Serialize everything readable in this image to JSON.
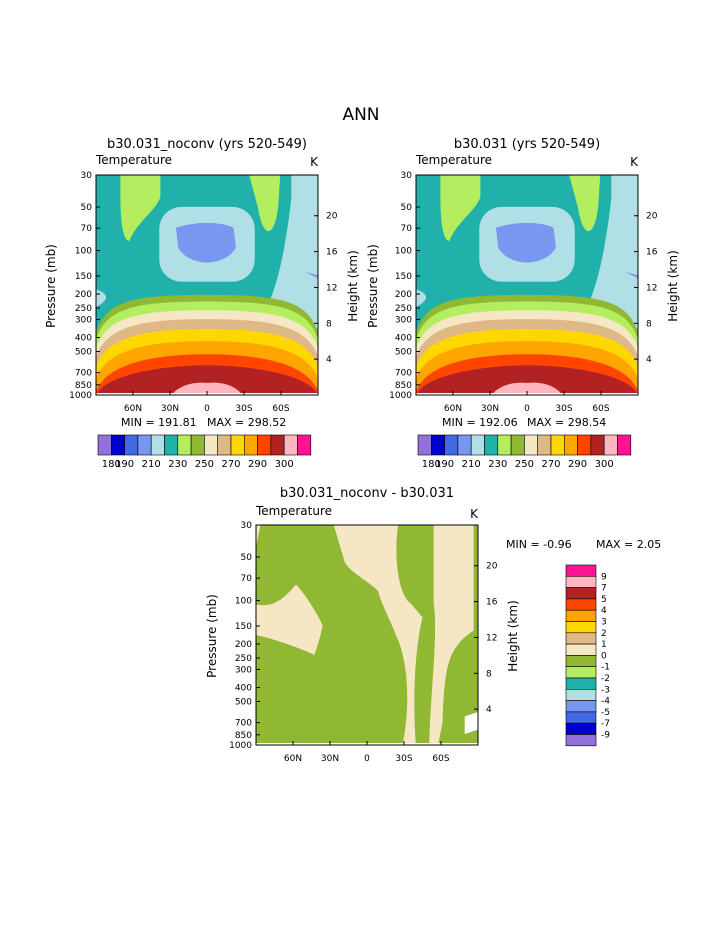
{
  "page_title": "ANN",
  "palette": {
    "abs": [
      "#9370db",
      "#0000cd",
      "#4169e1",
      "#7797f0",
      "#b0e0e6",
      "#20b2aa",
      "#b4ee60",
      "#90b832",
      "#f5e6c4",
      "#deb887",
      "#ffd700",
      "#ffa500",
      "#ff4500",
      "#b22222",
      "#ffb6c1",
      "#ff1493"
    ],
    "diff": [
      "#9370db",
      "#0000cd",
      "#4169e1",
      "#7797f0",
      "#b0e0e6",
      "#20b2aa",
      "#b4ee60",
      "#90b832",
      "#f5e6c4",
      "#deb887",
      "#ffd700",
      "#ffa500",
      "#ff4500",
      "#b22222",
      "#ffb6c1",
      "#ff1493"
    ]
  },
  "chart_data": [
    {
      "type": "heatmap",
      "title": "b30.031_noconv (yrs 520-549)",
      "subtitle": "Temperature",
      "units": "K",
      "ylabel": "Pressure (mb)",
      "y2label": "Height (km)",
      "y_ticks": [
        "30",
        "50",
        "70",
        "100",
        "150",
        "200",
        "250",
        "300",
        "400",
        "500",
        "700",
        "850",
        "1000"
      ],
      "y2_ticks": [
        "20",
        "16",
        "12",
        "8",
        "4"
      ],
      "x_ticks": [
        "60N",
        "30N",
        "0",
        "30S",
        "60S"
      ],
      "min_label": "MIN = 191.81",
      "max_label": "MAX = 298.52",
      "colorbar_labels": [
        "180",
        "190",
        "210",
        "230",
        "250",
        "270",
        "290",
        "300"
      ]
    },
    {
      "type": "heatmap",
      "title": "b30.031 (yrs 520-549)",
      "subtitle": "Temperature",
      "units": "K",
      "ylabel": "Pressure (mb)",
      "y2label": "Height (km)",
      "y_ticks": [
        "30",
        "50",
        "70",
        "100",
        "150",
        "200",
        "250",
        "300",
        "400",
        "500",
        "700",
        "850",
        "1000"
      ],
      "y2_ticks": [
        "20",
        "16",
        "12",
        "8",
        "4"
      ],
      "x_ticks": [
        "60N",
        "30N",
        "0",
        "30S",
        "60S"
      ],
      "min_label": "MIN = 192.06",
      "max_label": "MAX = 298.54",
      "colorbar_labels": [
        "180",
        "190",
        "210",
        "230",
        "250",
        "270",
        "290",
        "300"
      ]
    },
    {
      "type": "heatmap",
      "title": "b30.031_noconv - b30.031",
      "subtitle": "Temperature",
      "units": "K",
      "ylabel": "Pressure (mb)",
      "y2label": "Height (km)",
      "y_ticks": [
        "30",
        "50",
        "70",
        "100",
        "150",
        "200",
        "250",
        "300",
        "400",
        "500",
        "700",
        "850",
        "1000"
      ],
      "y2_ticks": [
        "20",
        "16",
        "12",
        "8",
        "4"
      ],
      "x_ticks": [
        "60N",
        "30N",
        "0",
        "30S",
        "60S"
      ],
      "min_label": "MIN = -0.96",
      "max_label": "MAX = 2.05",
      "colorbar_labels": [
        "9",
        "7",
        "5",
        "4",
        "3",
        "2",
        "1",
        "0",
        "-1",
        "-2",
        "-3",
        "-4",
        "-5",
        "-7",
        "-9"
      ]
    }
  ]
}
